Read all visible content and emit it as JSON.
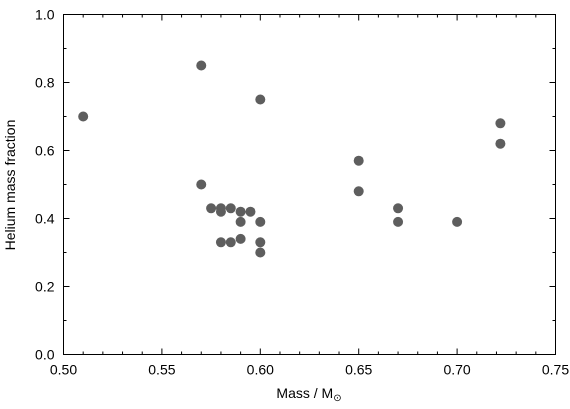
{
  "chart_data": {
    "type": "scatter",
    "xlabel": "Mass / M",
    "xlabel_subscript": "⊙",
    "ylabel": "Helium mass fraction",
    "xlim": [
      0.5,
      0.75
    ],
    "ylim": [
      0.0,
      1.0
    ],
    "x_ticks": [
      "0.50",
      "0.55",
      "0.60",
      "0.65",
      "0.70",
      "0.75"
    ],
    "y_ticks": [
      "0.0",
      "0.2",
      "0.4",
      "0.6",
      "0.8",
      "1.0"
    ],
    "grid": false,
    "marker_color": "#5e5e5e",
    "points": [
      {
        "x": 0.51,
        "y": 0.7
      },
      {
        "x": 0.57,
        "y": 0.85
      },
      {
        "x": 0.57,
        "y": 0.5
      },
      {
        "x": 0.575,
        "y": 0.43
      },
      {
        "x": 0.58,
        "y": 0.43
      },
      {
        "x": 0.58,
        "y": 0.42
      },
      {
        "x": 0.585,
        "y": 0.43
      },
      {
        "x": 0.59,
        "y": 0.42
      },
      {
        "x": 0.595,
        "y": 0.42
      },
      {
        "x": 0.59,
        "y": 0.39
      },
      {
        "x": 0.6,
        "y": 0.39
      },
      {
        "x": 0.58,
        "y": 0.33
      },
      {
        "x": 0.585,
        "y": 0.33
      },
      {
        "x": 0.59,
        "y": 0.34
      },
      {
        "x": 0.6,
        "y": 0.33
      },
      {
        "x": 0.6,
        "y": 0.3
      },
      {
        "x": 0.6,
        "y": 0.75
      },
      {
        "x": 0.65,
        "y": 0.57
      },
      {
        "x": 0.65,
        "y": 0.48
      },
      {
        "x": 0.67,
        "y": 0.43
      },
      {
        "x": 0.67,
        "y": 0.39
      },
      {
        "x": 0.7,
        "y": 0.39
      },
      {
        "x": 0.722,
        "y": 0.68
      },
      {
        "x": 0.722,
        "y": 0.62
      }
    ]
  }
}
